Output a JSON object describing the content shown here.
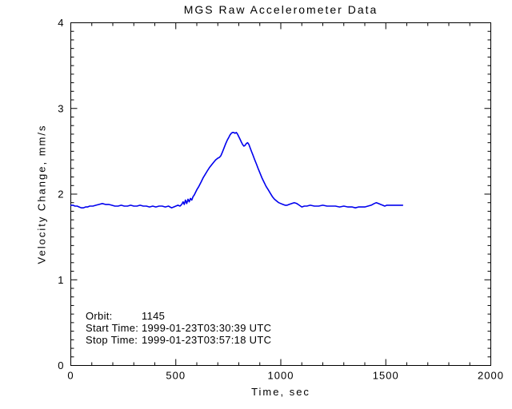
{
  "chart_data": {
    "type": "line",
    "title": "MGS Raw Accelerometer Data",
    "xlabel": "Time, sec",
    "ylabel": "Velocity Change, mm/s",
    "xlim": [
      0,
      2000
    ],
    "ylim": [
      0,
      4
    ],
    "xticks": [
      0,
      500,
      1000,
      1500,
      2000
    ],
    "yticks": [
      0,
      1,
      2,
      3,
      4
    ],
    "x_minor_interval": 100,
    "y_minor_interval": 0.1,
    "grid": false,
    "legend": null,
    "line_color": "#0000ee",
    "axis_color": "#000000",
    "background": "#ffffff",
    "series": [
      {
        "name": "velocity-change",
        "x": [
          0,
          10,
          20,
          30,
          40,
          50,
          60,
          70,
          80,
          90,
          105,
          120,
          135,
          150,
          165,
          180,
          195,
          210,
          225,
          240,
          255,
          270,
          285,
          300,
          315,
          330,
          345,
          360,
          375,
          390,
          405,
          420,
          435,
          450,
          465,
          480,
          490,
          500,
          510,
          520,
          528,
          535,
          540,
          546,
          552,
          558,
          564,
          570,
          576,
          582,
          588,
          594,
          600,
          610,
          620,
          630,
          640,
          650,
          660,
          670,
          680,
          690,
          700,
          708,
          715,
          722,
          730,
          738,
          745,
          752,
          758,
          764,
          770,
          776,
          782,
          788,
          794,
          800,
          806,
          812,
          818,
          824,
          830,
          836,
          842,
          848,
          854,
          860,
          868,
          876,
          884,
          892,
          900,
          910,
          920,
          930,
          940,
          950,
          960,
          970,
          980,
          990,
          1000,
          1010,
          1020,
          1030,
          1040,
          1052,
          1064,
          1076,
          1088,
          1100,
          1112,
          1124,
          1140,
          1160,
          1180,
          1200,
          1220,
          1240,
          1260,
          1280,
          1300,
          1320,
          1340,
          1355,
          1370,
          1385,
          1400,
          1415,
          1430,
          1445,
          1455,
          1465,
          1475,
          1485,
          1495,
          1505,
          1520,
          1535,
          1550,
          1565,
          1580
        ],
        "y": [
          1.87,
          1.87,
          1.86,
          1.86,
          1.85,
          1.84,
          1.84,
          1.85,
          1.85,
          1.86,
          1.86,
          1.87,
          1.88,
          1.89,
          1.88,
          1.88,
          1.87,
          1.86,
          1.86,
          1.87,
          1.86,
          1.86,
          1.87,
          1.86,
          1.86,
          1.87,
          1.86,
          1.86,
          1.85,
          1.86,
          1.85,
          1.86,
          1.86,
          1.85,
          1.86,
          1.84,
          1.85,
          1.86,
          1.87,
          1.86,
          1.88,
          1.91,
          1.88,
          1.93,
          1.89,
          1.94,
          1.91,
          1.95,
          1.93,
          1.97,
          1.99,
          2.02,
          2.05,
          2.09,
          2.14,
          2.19,
          2.23,
          2.27,
          2.31,
          2.34,
          2.37,
          2.4,
          2.42,
          2.43,
          2.45,
          2.49,
          2.54,
          2.59,
          2.63,
          2.66,
          2.69,
          2.71,
          2.72,
          2.72,
          2.71,
          2.72,
          2.7,
          2.67,
          2.64,
          2.61,
          2.58,
          2.56,
          2.57,
          2.59,
          2.6,
          2.58,
          2.54,
          2.5,
          2.45,
          2.4,
          2.35,
          2.3,
          2.25,
          2.19,
          2.14,
          2.09,
          2.05,
          2.01,
          1.97,
          1.94,
          1.92,
          1.9,
          1.89,
          1.88,
          1.87,
          1.87,
          1.88,
          1.89,
          1.9,
          1.89,
          1.87,
          1.85,
          1.86,
          1.86,
          1.87,
          1.86,
          1.86,
          1.87,
          1.86,
          1.86,
          1.86,
          1.85,
          1.86,
          1.85,
          1.85,
          1.84,
          1.85,
          1.85,
          1.85,
          1.86,
          1.87,
          1.89,
          1.9,
          1.89,
          1.88,
          1.87,
          1.86,
          1.87,
          1.87,
          1.87,
          1.87,
          1.87,
          1.87
        ]
      }
    ],
    "annotations": [
      {
        "label": "Orbit:",
        "value": "1145"
      },
      {
        "label": "Start Time:",
        "value": "1999-01-23T03:30:39 UTC"
      },
      {
        "label": "Stop Time:",
        "value": "1999-01-23T03:57:18 UTC"
      }
    ]
  }
}
